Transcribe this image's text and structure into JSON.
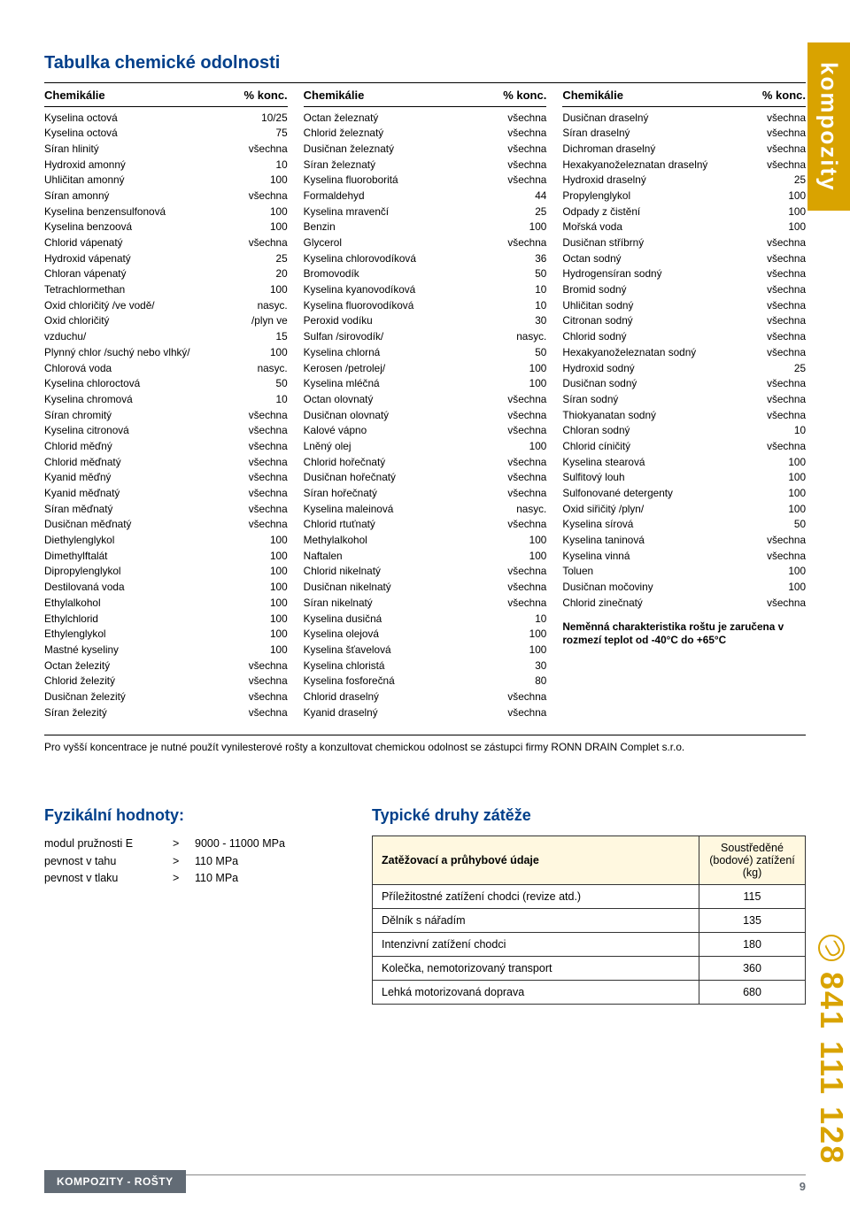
{
  "title": "Tabulka chemické odolnosti",
  "col_header": {
    "name": "Chemikálie",
    "val": "% konc."
  },
  "col1": [
    {
      "n": "Kyselina octová",
      "v": "10/25"
    },
    {
      "n": "Kyselina octová",
      "v": "75"
    },
    {
      "n": "Síran hlinitý",
      "v": "všechna"
    },
    {
      "n": "Hydroxid amonný",
      "v": "10"
    },
    {
      "n": "Uhličitan amonný",
      "v": "100"
    },
    {
      "n": "Síran amonný",
      "v": "všechna"
    },
    {
      "n": "Kyselina benzensulfonová",
      "v": "100"
    },
    {
      "n": "Kyselina benzoová",
      "v": "100"
    },
    {
      "n": "Chlorid vápenatý",
      "v": "všechna"
    },
    {
      "n": "Hydroxid vápenatý",
      "v": "25"
    },
    {
      "n": "Chloran vápenatý",
      "v": "20"
    },
    {
      "n": "Tetrachlormethan",
      "v": "100"
    },
    {
      "n": "Oxid chloričitý /ve vodě/",
      "v": "nasyc."
    },
    {
      "n": "Oxid chloričitý",
      "v": "/plyn ve"
    },
    {
      "n": "vzduchu/",
      "v": "15"
    },
    {
      "n": "Plynný chlor /suchý nebo vlhký/",
      "v": "100"
    },
    {
      "n": "Chlorová voda",
      "v": "nasyc."
    },
    {
      "n": "Kyselina chloroctová",
      "v": "50"
    },
    {
      "n": "Kyselina chromová",
      "v": "10"
    },
    {
      "n": "Síran chromitý",
      "v": "všechna"
    },
    {
      "n": "Kyselina citronová",
      "v": "všechna"
    },
    {
      "n": "Chlorid měďný",
      "v": "všechna"
    },
    {
      "n": "Chlorid měďnatý",
      "v": "všechna"
    },
    {
      "n": "Kyanid měďný",
      "v": "všechna"
    },
    {
      "n": "Kyanid měďnatý",
      "v": "všechna"
    },
    {
      "n": "Síran měďnatý",
      "v": "všechna"
    },
    {
      "n": "Dusičnan měďnatý",
      "v": "všechna"
    },
    {
      "n": "Diethylenglykol",
      "v": "100"
    },
    {
      "n": "Dimethylftalát",
      "v": "100"
    },
    {
      "n": "Dipropylenglykol",
      "v": "100"
    },
    {
      "n": "Destilovaná voda",
      "v": "100"
    },
    {
      "n": "Ethylalkohol",
      "v": "100"
    },
    {
      "n": "Ethylchlorid",
      "v": "100"
    },
    {
      "n": "Ethylenglykol",
      "v": "100"
    },
    {
      "n": "Mastné kyseliny",
      "v": "100"
    },
    {
      "n": "Octan železitý",
      "v": "všechna"
    },
    {
      "n": "Chlorid železitý",
      "v": "všechna"
    },
    {
      "n": "Dusičnan železitý",
      "v": "všechna"
    },
    {
      "n": "Síran železitý",
      "v": "všechna"
    }
  ],
  "col2": [
    {
      "n": "Octan železnatý",
      "v": "všechna"
    },
    {
      "n": "Chlorid železnatý",
      "v": "všechna"
    },
    {
      "n": "Dusičnan železnatý",
      "v": "všechna"
    },
    {
      "n": "Síran železnatý",
      "v": "všechna"
    },
    {
      "n": "Kyselina fluoroboritá",
      "v": "všechna"
    },
    {
      "n": "Formaldehyd",
      "v": "44"
    },
    {
      "n": "Kyselina mravenčí",
      "v": "25"
    },
    {
      "n": "Benzin",
      "v": "100"
    },
    {
      "n": "Glycerol",
      "v": "všechna"
    },
    {
      "n": "Kyselina chlorovodíková",
      "v": "36"
    },
    {
      "n": "Bromovodík",
      "v": "50"
    },
    {
      "n": "Kyselina kyanovodíková",
      "v": "10"
    },
    {
      "n": "Kyselina fluorovodíková",
      "v": "10"
    },
    {
      "n": "Peroxid vodíku",
      "v": "30"
    },
    {
      "n": "Sulfan /sirovodík/",
      "v": "nasyc."
    },
    {
      "n": "Kyselina chlorná",
      "v": "50"
    },
    {
      "n": "Kerosen /petrolej/",
      "v": "100"
    },
    {
      "n": "Kyselina mléčná",
      "v": "100"
    },
    {
      "n": "Octan olovnatý",
      "v": "všechna"
    },
    {
      "n": "Dusičnan olovnatý",
      "v": "všechna"
    },
    {
      "n": "Kalové vápno",
      "v": "všechna"
    },
    {
      "n": "Lněný olej",
      "v": "100"
    },
    {
      "n": "Chlorid hořečnatý",
      "v": "všechna"
    },
    {
      "n": "Dusičnan hořečnatý",
      "v": "všechna"
    },
    {
      "n": "Síran hořečnatý",
      "v": "všechna"
    },
    {
      "n": "Kyselina maleinová",
      "v": "nasyc."
    },
    {
      "n": "Chlorid rtuťnatý",
      "v": "všechna"
    },
    {
      "n": "Methylalkohol",
      "v": "100"
    },
    {
      "n": "Naftalen",
      "v": "100"
    },
    {
      "n": "Chlorid nikelnatý",
      "v": "všechna"
    },
    {
      "n": "Dusičnan nikelnatý",
      "v": "všechna"
    },
    {
      "n": "Síran nikelnatý",
      "v": "všechna"
    },
    {
      "n": "Kyselina dusičná",
      "v": "10"
    },
    {
      "n": "Kyselina olejová",
      "v": "100"
    },
    {
      "n": "Kyselina šťavelová",
      "v": "100"
    },
    {
      "n": "Kyselina chloristá",
      "v": "30"
    },
    {
      "n": "Kyselina fosforečná",
      "v": "80"
    },
    {
      "n": "Chlorid draselný",
      "v": "všechna"
    },
    {
      "n": "Kyanid draselný",
      "v": "všechna"
    }
  ],
  "col3": [
    {
      "n": "Dusičnan draselný",
      "v": "všechna"
    },
    {
      "n": "Síran draselný",
      "v": "všechna"
    },
    {
      "n": "Dichroman draselný",
      "v": "všechna"
    },
    {
      "n": "Hexakyanoželeznatan draselný",
      "v": "všechna"
    },
    {
      "n": "Hydroxid draselný",
      "v": "25"
    },
    {
      "n": "Propylenglykol",
      "v": "100"
    },
    {
      "n": "Odpady z čistění",
      "v": "100"
    },
    {
      "n": "Mořská voda",
      "v": "100"
    },
    {
      "n": "Dusičnan stříbrný",
      "v": "všechna"
    },
    {
      "n": "Octan sodný",
      "v": "všechna"
    },
    {
      "n": "Hydrogensíran sodný",
      "v": "všechna"
    },
    {
      "n": "Bromid sodný",
      "v": "všechna"
    },
    {
      "n": "Uhličitan sodný",
      "v": "všechna"
    },
    {
      "n": "Citronan sodný",
      "v": "všechna"
    },
    {
      "n": "Chlorid sodný",
      "v": "všechna"
    },
    {
      "n": "Hexakyanoželeznatan sodný",
      "v": "všechna"
    },
    {
      "n": "Hydroxid sodný",
      "v": "25"
    },
    {
      "n": "Dusičnan sodný",
      "v": "všechna"
    },
    {
      "n": "Síran sodný",
      "v": "všechna"
    },
    {
      "n": "Thiokyanatan sodný",
      "v": "všechna"
    },
    {
      "n": "Chloran sodný",
      "v": "10"
    },
    {
      "n": "Chlorid cíničitý",
      "v": "všechna"
    },
    {
      "n": "Kyselina stearová",
      "v": "100"
    },
    {
      "n": "Sulfitový louh",
      "v": "100"
    },
    {
      "n": "Sulfonované detergenty",
      "v": "100"
    },
    {
      "n": "Oxid siřičitý /plyn/",
      "v": "100"
    },
    {
      "n": "Kyselina sírová",
      "v": "50"
    },
    {
      "n": "Kyselina taninová",
      "v": "všechna"
    },
    {
      "n": "Kyselina vinná",
      "v": "všechna"
    },
    {
      "n": "Toluen",
      "v": "100"
    },
    {
      "n": "Dusičnan močoviny",
      "v": "100"
    },
    {
      "n": "Chlorid zinečnatý",
      "v": "všechna"
    }
  ],
  "note": "Neměnná charakteristika roštu je zaručena v rozmezí teplot od -40°C do +65°C",
  "footnote": "Pro vyšší koncentrace je nutné použít vynilesterové rošty a konzultovat chemickou odolnost se zástupci firmy RONN DRAIN Complet s.r.o.",
  "phys": {
    "title": "Fyzikální hodnoty:",
    "rows": [
      {
        "l": "modul pružnosti E",
        "o": ">",
        "v": "9000 - 11000 MPa"
      },
      {
        "l": "pevnost v tahu",
        "o": ">",
        "v": "110 MPa"
      },
      {
        "l": "pevnost v tlaku",
        "o": ">",
        "v": "110 MPa"
      }
    ]
  },
  "load": {
    "title": "Typické druhy zátěže",
    "header1": "Zatěžovací a průhybové údaje",
    "header2": "Soustředěné (bodové) zatížení (kg)",
    "rows": [
      {
        "l": "Příležitostné zatížení chodci (revize atd.)",
        "v": "115"
      },
      {
        "l": "Dělník s nářadím",
        "v": "135"
      },
      {
        "l": "Intenzivní zatížení chodci",
        "v": "180"
      },
      {
        "l": "Kolečka, nemotorizovaný transport",
        "v": "360"
      },
      {
        "l": "Lehká motorizovaná doprava",
        "v": "680"
      }
    ]
  },
  "side_tab": "kompozity",
  "side_phone": "841 111 128",
  "footer_label": "KOMPOZITY - ROŠTY",
  "footer_page": "9"
}
